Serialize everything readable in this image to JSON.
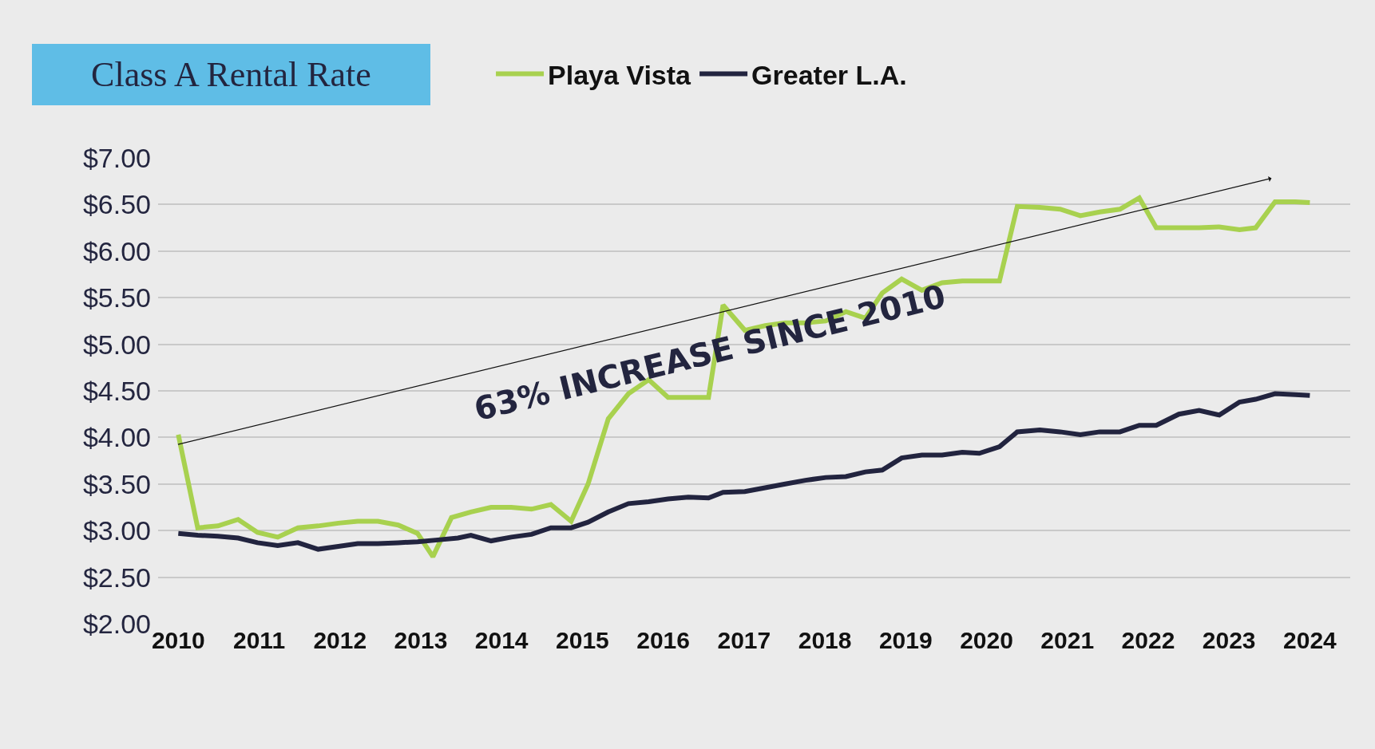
{
  "chart_data": {
    "type": "line",
    "title": "Class A Rental Rate",
    "annotations": [
      "63% INCREASE SINCE 2010"
    ],
    "series": [
      {
        "name": "Playa Vista",
        "color": "#a8d14f",
        "x": [
          2010,
          2010.24,
          2010.49,
          2010.74,
          2010.98,
          2011.23,
          2011.48,
          2011.73,
          2011.98,
          2012.22,
          2012.47,
          2012.72,
          2012.96,
          2013.15,
          2013.38,
          2013.62,
          2013.87,
          2014.12,
          2014.37,
          2014.61,
          2014.86,
          2015.07,
          2015.32,
          2015.57,
          2015.82,
          2016.06,
          2016.31,
          2016.56,
          2016.74,
          2017.01,
          2017.26,
          2017.51,
          2017.76,
          2018.01,
          2018.26,
          2018.5,
          2018.71,
          2018.95,
          2019.2,
          2019.45,
          2019.7,
          2020.16,
          2020.38,
          2020.66,
          2020.91,
          2021.16,
          2021.4,
          2021.65,
          2021.89,
          2022.1,
          2022.38,
          2022.63,
          2022.88,
          2023.13,
          2023.33,
          2023.57,
          2023.82,
          2024
        ],
        "values": [
          4.03,
          3.03,
          3.05,
          3.12,
          2.98,
          2.93,
          3.03,
          3.05,
          3.08,
          3.1,
          3.1,
          3.06,
          2.97,
          2.72,
          3.14,
          3.2,
          3.25,
          3.25,
          3.23,
          3.28,
          3.1,
          3.5,
          4.2,
          4.47,
          4.62,
          4.43,
          4.43,
          4.43,
          5.42,
          5.15,
          5.2,
          5.23,
          5.23,
          5.25,
          5.35,
          5.28,
          5.55,
          5.7,
          5.58,
          5.66,
          5.68,
          5.68,
          6.48,
          6.47,
          6.45,
          6.38,
          6.42,
          6.45,
          6.57,
          6.25,
          6.25,
          6.25,
          6.26,
          6.23,
          6.25,
          6.53,
          6.53,
          6.52
        ]
      },
      {
        "name": "Greater L.A.",
        "color": "#22243f",
        "x": [
          2010,
          2010.24,
          2010.49,
          2010.74,
          2010.98,
          2011.23,
          2011.48,
          2011.73,
          2011.98,
          2012.22,
          2012.47,
          2012.72,
          2012.96,
          2013.21,
          2013.46,
          2013.62,
          2013.87,
          2014.12,
          2014.37,
          2014.61,
          2014.86,
          2015.07,
          2015.32,
          2015.57,
          2015.82,
          2016.06,
          2016.31,
          2016.56,
          2016.74,
          2017.01,
          2017.26,
          2017.51,
          2017.76,
          2018.01,
          2018.26,
          2018.5,
          2018.71,
          2018.95,
          2019.2,
          2019.45,
          2019.7,
          2019.91,
          2020.16,
          2020.38,
          2020.66,
          2020.91,
          2021.16,
          2021.4,
          2021.65,
          2021.89,
          2022.1,
          2022.38,
          2022.63,
          2022.88,
          2023.13,
          2023.33,
          2023.57,
          2023.82,
          2024
        ],
        "values": [
          2.97,
          2.95,
          2.94,
          2.92,
          2.87,
          2.84,
          2.87,
          2.8,
          2.83,
          2.86,
          2.86,
          2.87,
          2.88,
          2.9,
          2.92,
          2.95,
          2.89,
          2.93,
          2.96,
          3.03,
          3.03,
          3.09,
          3.2,
          3.29,
          3.31,
          3.34,
          3.36,
          3.35,
          3.41,
          3.42,
          3.46,
          3.5,
          3.54,
          3.57,
          3.58,
          3.63,
          3.65,
          3.78,
          3.81,
          3.81,
          3.84,
          3.83,
          3.9,
          4.06,
          4.08,
          4.06,
          4.03,
          4.06,
          4.06,
          4.13,
          4.13,
          4.25,
          4.29,
          4.24,
          4.38,
          4.41,
          4.47,
          4.46,
          4.45
        ]
      }
    ],
    "xlim": [
      2009.75,
      2024.5
    ],
    "xticks": [
      2010,
      2011,
      2012,
      2013,
      2014,
      2015,
      2016,
      2017,
      2018,
      2019,
      2020,
      2021,
      2022,
      2023,
      2024
    ],
    "ylim": [
      2,
      7
    ],
    "yticks": [
      {
        "value": 2,
        "label": "$2.00"
      },
      {
        "value": 2.5,
        "label": "$2.50"
      },
      {
        "value": 3,
        "label": "$3.00"
      },
      {
        "value": 3.5,
        "label": "$3.50"
      },
      {
        "value": 4,
        "label": "$4.00"
      },
      {
        "value": 4.5,
        "label": "$4.50"
      },
      {
        "value": 5,
        "label": "$5.00"
      },
      {
        "value": 5.5,
        "label": "$5.50"
      },
      {
        "value": 6,
        "label": "$6.00"
      },
      {
        "value": 6.5,
        "label": "$6.50"
      },
      {
        "value": 7,
        "label": "$7.00"
      }
    ],
    "grid": "y",
    "legend": "top",
    "marker": "none",
    "line_style": "solid"
  }
}
